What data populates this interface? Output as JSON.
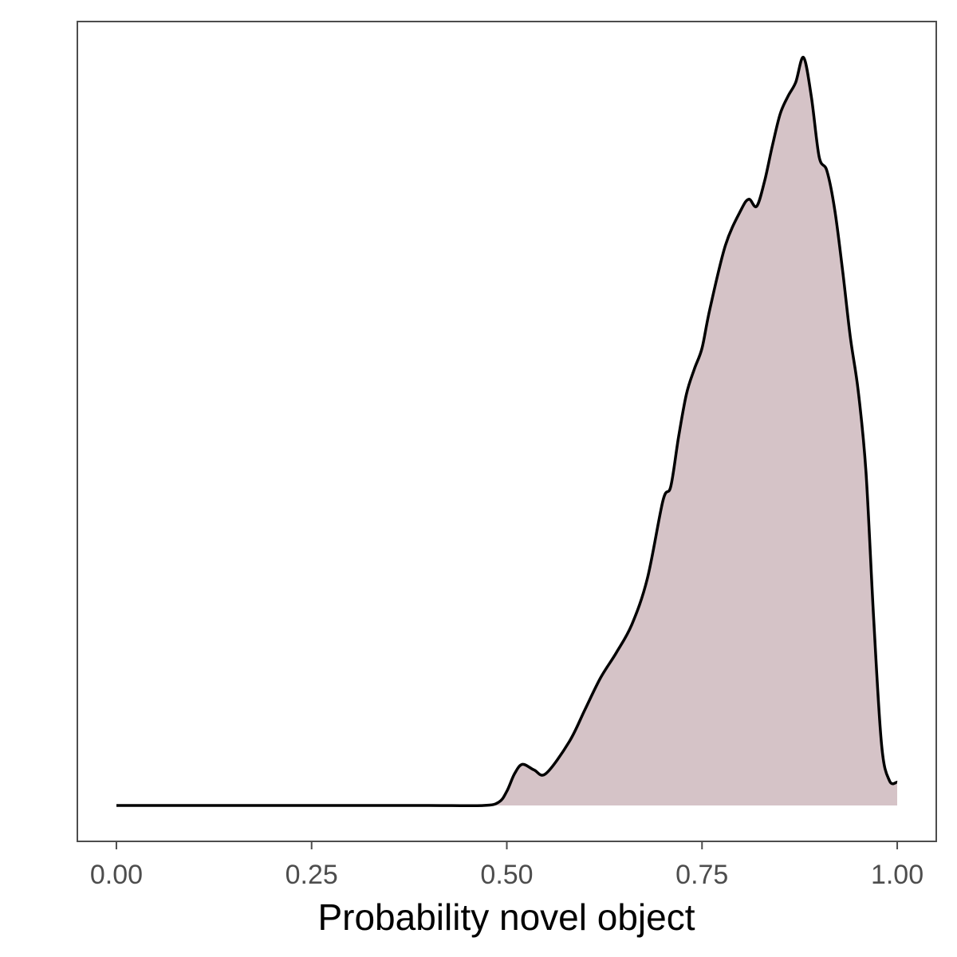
{
  "chart_data": {
    "type": "area",
    "title": "",
    "xlabel": "Probability novel object",
    "ylabel": "",
    "xlim": [
      -0.05,
      1.05
    ],
    "ylim": [
      0,
      1
    ],
    "x_ticks": [
      0.0,
      0.25,
      0.5,
      0.75,
      1.0
    ],
    "x_tick_labels": [
      "0.00",
      "0.25",
      "0.50",
      "0.75",
      "1.00"
    ],
    "y_ticks": [],
    "grid": false,
    "legend": "none",
    "fill_color": "#d5c3c7",
    "line_color": "#000000",
    "panel_border_color": "#4d4d4d",
    "series": [
      {
        "x": [
          0.0,
          0.1,
          0.2,
          0.3,
          0.4,
          0.47,
          0.49,
          0.5,
          0.51,
          0.52,
          0.535,
          0.55,
          0.58,
          0.6,
          0.62,
          0.64,
          0.66,
          0.68,
          0.7,
          0.71,
          0.72,
          0.73,
          0.74,
          0.75,
          0.76,
          0.78,
          0.8,
          0.81,
          0.82,
          0.83,
          0.84,
          0.85,
          0.86,
          0.87,
          0.88,
          0.89,
          0.9,
          0.91,
          0.92,
          0.93,
          0.94,
          0.95,
          0.96,
          0.97,
          0.98,
          0.99,
          1.0
        ],
        "y": [
          0.0,
          0.0,
          0.0,
          0.0,
          0.0,
          0.0,
          0.005,
          0.02,
          0.045,
          0.058,
          0.05,
          0.045,
          0.09,
          0.135,
          0.18,
          0.215,
          0.255,
          0.32,
          0.43,
          0.45,
          0.52,
          0.58,
          0.615,
          0.645,
          0.7,
          0.79,
          0.84,
          0.855,
          0.845,
          0.88,
          0.93,
          0.975,
          1.0,
          1.02,
          1.055,
          1.0,
          0.915,
          0.895,
          0.84,
          0.755,
          0.66,
          0.585,
          0.47,
          0.26,
          0.085,
          0.035,
          0.033
        ]
      }
    ]
  }
}
